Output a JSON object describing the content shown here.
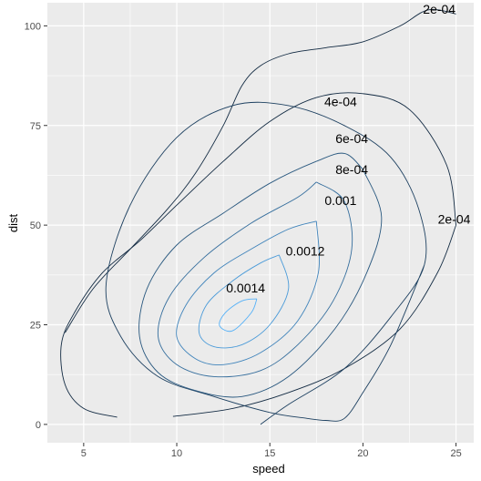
{
  "chart_data": {
    "type": "line",
    "title": "",
    "xlabel": "speed",
    "ylabel": "dist",
    "xlim": [
      3.05,
      25.95
    ],
    "ylim": [
      -4.6,
      105.8
    ],
    "x_ticks": [
      5,
      10,
      15,
      20,
      25
    ],
    "y_ticks": [
      0,
      25,
      50,
      75,
      100
    ],
    "x_tick_labels": [
      "5",
      "10",
      "15",
      "20",
      "25"
    ],
    "y_tick_labels": [
      "0",
      "25",
      "50",
      "75",
      "100"
    ],
    "grid": true,
    "legend": "none",
    "colors": {
      "panel": "#ebebeb",
      "grid": "#ffffff",
      "low_level": "#132b43",
      "high_level": "#56b1f7"
    },
    "series": [
      {
        "name": "2e-04",
        "level": 0.0002,
        "label_at": [
          24.1,
          104.2
        ],
        "x": [
          4.0,
          5.5,
          7.5,
          9.5,
          11.0,
          12.5,
          13.5,
          14.5,
          16.0,
          18.0,
          20.0,
          22.0,
          23.5,
          25.0
        ],
        "y": [
          23.0,
          34.0,
          44.0,
          54.0,
          63.0,
          75.0,
          85.0,
          90.0,
          93.0,
          94.5,
          96.0,
          100.0,
          104.0,
          103.0
        ]
      },
      {
        "name": "2e-04",
        "level": 0.0002,
        "label_at": [
          24.9,
          51.5
        ],
        "x": [
          6.8,
          5.0,
          4.0,
          3.8,
          4.5,
          6.0,
          8.0,
          10.0,
          12.5,
          15.0,
          17.5,
          20.0,
          22.5,
          24.5,
          25.0
        ],
        "y": [
          1.8,
          4.0,
          10.0,
          20.0,
          28.0,
          38.0,
          46.0,
          55.0,
          66.0,
          76.0,
          82.0,
          83.0,
          79.0,
          65.0,
          50.0
        ]
      },
      {
        "name": "2e-04",
        "level": 0.0002,
        "x": [
          9.8,
          13.0,
          16.0,
          19.0,
          22.0,
          24.0,
          25.0
        ],
        "y": [
          2.0,
          4.0,
          8.0,
          14.0,
          24.0,
          38.0,
          50.0
        ]
      },
      {
        "name": "4e-04",
        "level": 0.0004,
        "label_at": [
          18.8,
          81.0
        ],
        "x": [
          14.5,
          16.0,
          19.0,
          21.5,
          23.3,
          23.0,
          21.5,
          19.0,
          16.0,
          13.0,
          10.0,
          7.5,
          6.2,
          7.0,
          9.0,
          12.0,
          15.0,
          17.0,
          18.0,
          19.0,
          20.0,
          21.5,
          23.3
        ],
        "y": [
          0.0,
          5.0,
          14.0,
          27.0,
          40.0,
          54.0,
          67.0,
          75.0,
          80.0,
          80.0,
          72.0,
          55.0,
          35.0,
          22.0,
          12.0,
          7.0,
          3.0,
          1.5,
          1.0,
          1.5,
          8.0,
          20.0,
          40.0
        ]
      },
      {
        "name": "6e-04",
        "level": 0.0006,
        "label_at": [
          19.4,
          71.8
        ],
        "x": [
          20.0,
          21.0,
          20.2,
          18.5,
          16.0,
          13.5,
          11.0,
          9.0,
          8.0,
          8.4,
          10.0,
          12.5,
          15.0,
          17.5,
          19.0,
          20.0
        ],
        "y": [
          64.0,
          52.0,
          38.0,
          24.0,
          12.0,
          7.0,
          8.5,
          13.0,
          22.0,
          34.0,
          45.0,
          53.0,
          60.5,
          66.0,
          68.0,
          64.0
        ]
      },
      {
        "name": "8e-04",
        "level": 0.0008,
        "label_at": [
          19.4,
          64.0
        ],
        "x": [
          17.5,
          19.0,
          19.4,
          18.4,
          16.5,
          14.5,
          12.0,
          10.0,
          9.0,
          9.6,
          11.5,
          14.0,
          16.5,
          17.5
        ],
        "y": [
          60.8,
          56.0,
          44.0,
          31.0,
          20.0,
          13.5,
          12.0,
          15.0,
          22.0,
          32.0,
          42.0,
          50.5,
          57.0,
          60.8
        ]
      },
      {
        "name": "0.001",
        "level": 0.001,
        "label_at": [
          18.8,
          56.2
        ],
        "x": [
          17.5,
          17.6,
          16.5,
          14.5,
          12.5,
          11.0,
          10.0,
          10.5,
          12.0,
          14.0,
          16.0,
          17.5
        ],
        "y": [
          51.0,
          38.0,
          26.0,
          18.0,
          15.0,
          16.5,
          22.0,
          30.0,
          38.0,
          44.0,
          49.0,
          51.0
        ]
      },
      {
        "name": "0.0012",
        "level": 0.0012,
        "label_at": [
          16.9,
          43.5
        ],
        "x": [
          15.5,
          16.0,
          15.0,
          13.5,
          12.0,
          11.2,
          11.6,
          13.0,
          14.5,
          15.5
        ],
        "y": [
          42.5,
          34.0,
          25.0,
          20.0,
          19.5,
          23.0,
          30.0,
          36.0,
          40.5,
          42.5
        ]
      },
      {
        "name": "0.0014",
        "level": 0.0014,
        "label_at": [
          13.7,
          34.3
        ],
        "x": [
          14.3,
          14.0,
          13.0,
          12.3,
          12.6,
          13.5,
          14.3
        ],
        "y": [
          31.5,
          28.0,
          23.5,
          24.8,
          28.0,
          31.0,
          31.5
        ]
      }
    ]
  }
}
